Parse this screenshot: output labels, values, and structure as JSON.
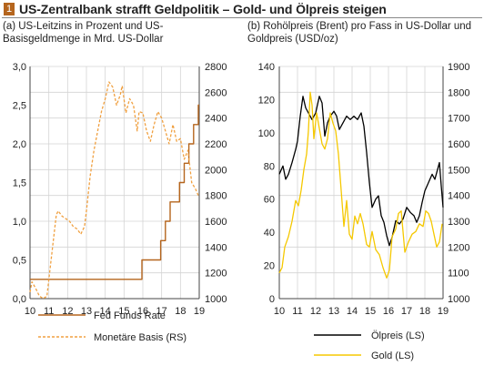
{
  "header": {
    "badge": "1",
    "title": "US-Zentralbank strafft Geldpolitik – Gold- und Ölpreis steigen"
  },
  "colors": {
    "accent": "#b5651d",
    "fed": "#b5651d",
    "base": "#f0a040",
    "oil": "#000000",
    "gold": "#f5c800"
  },
  "chart_data": [
    {
      "type": "line",
      "title": "(a) US-Leitzins in Prozent und US-Basisgeldmenge in Mrd. US-Dollar",
      "xlabel": "",
      "ylabel": "",
      "xlim": [
        2010,
        2019
      ],
      "ylim": [
        0,
        3
      ],
      "y2lim": [
        1000,
        2800
      ],
      "x_ticks": [
        "10",
        "11",
        "12",
        "13",
        "14",
        "15",
        "16",
        "17",
        "18",
        "19"
      ],
      "x_tick_values": [
        2010,
        2011,
        2012,
        2013,
        2014,
        2015,
        2016,
        2017,
        2018,
        2019
      ],
      "y_ticks": [
        "0,0",
        "0,5",
        "1,0",
        "1,5",
        "2,0",
        "2,5",
        "3,0"
      ],
      "y_tick_values": [
        0,
        0.5,
        1,
        1.5,
        2,
        2.5,
        3
      ],
      "y2_ticks": [
        "1000",
        "1200",
        "1400",
        "1600",
        "1800",
        "2000",
        "2200",
        "2400",
        "2600",
        "2800"
      ],
      "y2_tick_values": [
        1000,
        1200,
        1400,
        1600,
        1800,
        2000,
        2200,
        2400,
        2600,
        2800
      ],
      "legend_position": "bottom",
      "grid": true,
      "series": [
        {
          "name": "Fed Funds Rate",
          "axis": "left",
          "style": "solid",
          "x": [
            2010,
            2015.95,
            2015.95,
            2016.95,
            2016.95,
            2017.2,
            2017.2,
            2017.45,
            2017.45,
            2017.95,
            2017.95,
            2018.2,
            2018.2,
            2018.45,
            2018.45,
            2018.7,
            2018.7,
            2018.95,
            2018.95,
            2019.0
          ],
          "y": [
            0.25,
            0.25,
            0.5,
            0.5,
            0.75,
            0.75,
            1.0,
            1.0,
            1.25,
            1.25,
            1.5,
            1.5,
            1.75,
            1.75,
            2.0,
            2.0,
            2.25,
            2.25,
            2.5,
            2.5
          ]
        },
        {
          "name": "Monetäre Basis (RS)",
          "axis": "right",
          "style": "dashed",
          "x": [
            2010.0,
            2010.1,
            2010.3,
            2010.5,
            2010.7,
            2010.9,
            2011.0,
            2011.2,
            2011.4,
            2011.5,
            2011.7,
            2011.9,
            2012.1,
            2012.3,
            2012.5,
            2012.7,
            2012.9,
            2013.0,
            2013.2,
            2013.4,
            2013.6,
            2013.8,
            2014.0,
            2014.2,
            2014.4,
            2014.6,
            2014.8,
            2014.9,
            2015.1,
            2015.3,
            2015.5,
            2015.7,
            2015.8,
            2016.0,
            2016.2,
            2016.4,
            2016.6,
            2016.8,
            2017.0,
            2017.2,
            2017.4,
            2017.6,
            2017.8,
            2018.0,
            2018.2,
            2018.4,
            2018.6,
            2018.8,
            2018.95
          ],
          "y": [
            1050,
            1130,
            1080,
            1020,
            1000,
            1020,
            1150,
            1400,
            1650,
            1680,
            1640,
            1620,
            1600,
            1560,
            1540,
            1500,
            1560,
            1680,
            1950,
            2150,
            2300,
            2450,
            2550,
            2680,
            2640,
            2500,
            2580,
            2650,
            2440,
            2550,
            2500,
            2300,
            2450,
            2440,
            2300,
            2220,
            2350,
            2450,
            2400,
            2300,
            2200,
            2350,
            2220,
            2240,
            2080,
            2150,
            1900,
            1850,
            1800
          ]
        }
      ]
    },
    {
      "type": "line",
      "title": "(b) Rohölpreis (Brent) pro Fass in US-Dollar und Goldpreis (USD/oz)",
      "xlabel": "",
      "ylabel": "",
      "xlim": [
        2010,
        2019
      ],
      "ylim": [
        0,
        140
      ],
      "y2lim": [
        1000,
        1900
      ],
      "x_ticks": [
        "10",
        "11",
        "12",
        "13",
        "14",
        "15",
        "16",
        "17",
        "18",
        "19"
      ],
      "x_tick_values": [
        2010,
        2011,
        2012,
        2013,
        2014,
        2015,
        2016,
        2017,
        2018,
        2019
      ],
      "y_ticks": [
        "0",
        "20",
        "40",
        "60",
        "80",
        "100",
        "120",
        "140"
      ],
      "y_tick_values": [
        0,
        20,
        40,
        60,
        80,
        100,
        120,
        140
      ],
      "y2_ticks": [
        "1000",
        "1100",
        "1200",
        "1300",
        "1400",
        "1500",
        "1600",
        "1700",
        "1800",
        "1900"
      ],
      "y2_tick_values": [
        1000,
        1100,
        1200,
        1300,
        1400,
        1500,
        1600,
        1700,
        1800,
        1900
      ],
      "legend_position": "bottom",
      "grid": true,
      "series": [
        {
          "name": "Ölpreis (LS)",
          "axis": "left",
          "style": "solid",
          "x": [
            2010.0,
            2010.2,
            2010.35,
            2010.5,
            2010.7,
            2010.9,
            2011.0,
            2011.15,
            2011.3,
            2011.45,
            2011.6,
            2011.8,
            2012.0,
            2012.2,
            2012.35,
            2012.5,
            2012.65,
            2012.8,
            2013.0,
            2013.15,
            2013.3,
            2013.5,
            2013.7,
            2013.9,
            2014.1,
            2014.3,
            2014.5,
            2014.65,
            2014.8,
            2014.95,
            2015.1,
            2015.3,
            2015.45,
            2015.6,
            2015.75,
            2015.9,
            2016.05,
            2016.2,
            2016.4,
            2016.6,
            2016.8,
            2017.0,
            2017.2,
            2017.4,
            2017.55,
            2017.7,
            2017.85,
            2018.0,
            2018.2,
            2018.4,
            2018.55,
            2018.7,
            2018.8,
            2018.9,
            2019.0
          ],
          "y": [
            75,
            80,
            72,
            75,
            82,
            90,
            95,
            110,
            122,
            115,
            112,
            108,
            112,
            122,
            118,
            98,
            106,
            110,
            113,
            110,
            102,
            106,
            110,
            108,
            110,
            108,
            112,
            104,
            88,
            70,
            55,
            60,
            62,
            50,
            46,
            38,
            32,
            37,
            47,
            45,
            48,
            55,
            52,
            50,
            46,
            50,
            58,
            65,
            70,
            75,
            72,
            78,
            82,
            68,
            55
          ]
        },
        {
          "name": "Gold (LS)",
          "axis": "right",
          "style": "solid",
          "x": [
            2010.0,
            2010.15,
            2010.3,
            2010.5,
            2010.7,
            2010.9,
            2011.05,
            2011.2,
            2011.35,
            2011.5,
            2011.6,
            2011.7,
            2011.8,
            2011.9,
            2012.05,
            2012.2,
            2012.35,
            2012.5,
            2012.65,
            2012.8,
            2012.95,
            2013.1,
            2013.25,
            2013.4,
            2013.55,
            2013.7,
            2013.85,
            2014.0,
            2014.15,
            2014.3,
            2014.45,
            2014.6,
            2014.8,
            2014.95,
            2015.1,
            2015.3,
            2015.5,
            2015.7,
            2015.9,
            2016.05,
            2016.2,
            2016.4,
            2016.55,
            2016.7,
            2016.9,
            2017.1,
            2017.3,
            2017.5,
            2017.7,
            2017.9,
            2018.05,
            2018.2,
            2018.35,
            2018.5,
            2018.65,
            2018.8,
            2018.95
          ],
          "y": [
            1100,
            1120,
            1200,
            1240,
            1300,
            1380,
            1360,
            1420,
            1500,
            1560,
            1650,
            1800,
            1750,
            1620,
            1720,
            1660,
            1600,
            1580,
            1620,
            1720,
            1680,
            1650,
            1560,
            1420,
            1280,
            1380,
            1250,
            1230,
            1320,
            1290,
            1330,
            1290,
            1210,
            1200,
            1260,
            1190,
            1170,
            1120,
            1080,
            1110,
            1240,
            1270,
            1330,
            1340,
            1180,
            1220,
            1250,
            1260,
            1290,
            1280,
            1340,
            1330,
            1300,
            1250,
            1200,
            1220,
            1290
          ]
        }
      ]
    }
  ]
}
